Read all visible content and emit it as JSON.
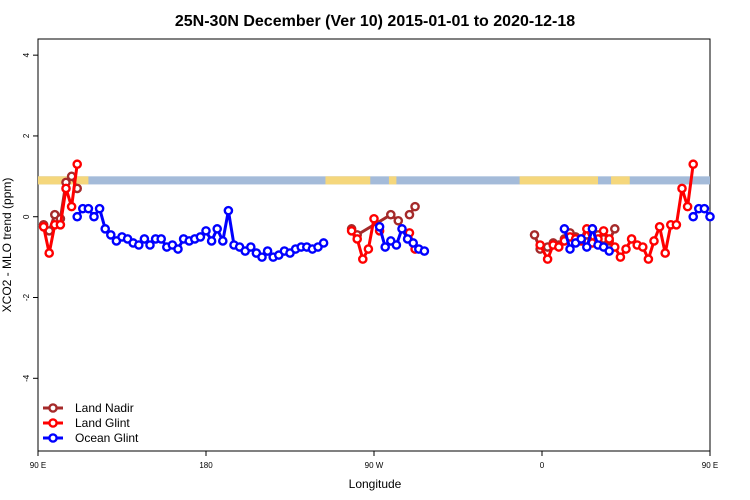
{
  "chart_data": {
    "type": "line",
    "title": "25N-30N December (Ver 10)   2015-01-01 to 2020-12-18",
    "xlabel": "Longitude",
    "ylabel": "XCO2 - MLO trend (ppm)",
    "xlim": [
      90,
      450
    ],
    "ylim": [
      -5.8,
      4.4
    ],
    "x_ticks": [
      {
        "value": 90,
        "label": "90 E"
      },
      {
        "value": 180,
        "label": "180"
      },
      {
        "value": 270,
        "label": "90 W"
      },
      {
        "value": 360,
        "label": "0"
      },
      {
        "value": 450,
        "label": "90 E"
      },
      {
        "value": 540,
        "label": "180"
      }
    ],
    "y_ticks": [
      {
        "value": 4,
        "label": "4"
      },
      {
        "value": 2,
        "label": "2"
      },
      {
        "value": 0,
        "label": "0"
      },
      {
        "value": -2,
        "label": "-2"
      },
      {
        "value": -4,
        "label": "-4"
      }
    ],
    "colors": {
      "land_nadir": "#a52a2a",
      "land_glint": "#ff0000",
      "ocean_glint": "#0000ff",
      "band_ocean": "#a4bbd9",
      "band_land": "#f5d77c"
    },
    "land_band": {
      "y_range": [
        0.8,
        1.0
      ],
      "land_lon_ranges": [
        [
          90,
          117
        ],
        [
          244,
          268
        ],
        [
          278,
          282
        ],
        [
          348,
          390
        ],
        [
          397,
          407
        ],
        [
          476,
          486
        ],
        [
          496,
          540
        ]
      ]
    },
    "legend": {
      "position": "bottom-left",
      "entries": [
        {
          "label": "Land Nadir",
          "color": "#a52a2a"
        },
        {
          "label": "Land Glint",
          "color": "#ff0000"
        },
        {
          "label": "Ocean Glint",
          "color": "#0000ff"
        }
      ]
    },
    "series": [
      {
        "name": "Land Nadir",
        "color": "#a52a2a",
        "segments": [
          [
            [
              93,
              -0.2
            ],
            [
              96,
              -0.35
            ],
            [
              99,
              0.05
            ],
            [
              102,
              -0.05
            ],
            [
              105,
              0.85
            ],
            [
              108,
              1.0
            ],
            [
              111,
              0.7
            ]
          ],
          [
            [
              258,
              -0.3
            ],
            [
              261,
              -0.45
            ],
            [
              279,
              0.05
            ],
            [
              283,
              -0.1
            ]
          ],
          [
            [
              289,
              0.05
            ],
            [
              292,
              0.25
            ]
          ],
          [
            [
              356,
              -0.45
            ],
            [
              359,
              -0.8
            ],
            [
              363,
              -0.75
            ],
            [
              366,
              -0.65
            ],
            [
              369,
              -0.7
            ],
            [
              372,
              -0.55
            ],
            [
              375,
              -0.4
            ],
            [
              378,
              -0.5
            ],
            [
              381,
              -0.55
            ],
            [
              384,
              -0.45
            ],
            [
              387,
              -0.3
            ],
            [
              390,
              -0.45
            ],
            [
              393,
              -0.55
            ],
            [
              396,
              -0.6
            ],
            [
              399,
              -0.3
            ]
          ]
        ]
      },
      {
        "name": "Land Glint",
        "color": "#ff0000",
        "segments": [
          [
            [
              93,
              -0.25
            ],
            [
              96,
              -0.9
            ],
            [
              99,
              -0.2
            ],
            [
              102,
              -0.2
            ],
            [
              105,
              0.7
            ],
            [
              108,
              0.25
            ],
            [
              111,
              1.3
            ]
          ],
          [
            [
              258,
              -0.35
            ],
            [
              261,
              -0.55
            ],
            [
              264,
              -1.05
            ],
            [
              267,
              -0.8
            ],
            [
              270,
              -0.05
            ],
            [
              273,
              -0.35
            ]
          ],
          [
            [
              289,
              -0.4
            ],
            [
              292,
              -0.8
            ]
          ],
          [
            [
              359,
              -0.7
            ],
            [
              363,
              -1.05
            ],
            [
              366,
              -0.7
            ],
            [
              369,
              -0.75
            ],
            [
              372,
              -0.6
            ],
            [
              375,
              -0.5
            ],
            [
              378,
              -0.55
            ],
            [
              381,
              -0.6
            ],
            [
              384,
              -0.3
            ],
            [
              387,
              -0.65
            ],
            [
              390,
              -0.55
            ],
            [
              393,
              -0.35
            ],
            [
              396,
              -0.55
            ],
            [
              399,
              -0.75
            ],
            [
              402,
              -1.0
            ],
            [
              405,
              -0.8
            ],
            [
              408,
              -0.55
            ],
            [
              411,
              -0.7
            ],
            [
              414,
              -0.75
            ],
            [
              417,
              -1.05
            ],
            [
              420,
              -0.6
            ],
            [
              423,
              -0.25
            ],
            [
              426,
              -0.9
            ],
            [
              429,
              -0.2
            ],
            [
              432,
              -0.2
            ],
            [
              435,
              0.7
            ],
            [
              438,
              0.25
            ],
            [
              441,
              1.3
            ]
          ]
        ]
      },
      {
        "name": "Ocean Glint",
        "color": "#0000ff",
        "segments": [
          [
            [
              111,
              0.0
            ],
            [
              114,
              0.2
            ],
            [
              117,
              0.2
            ],
            [
              120,
              0.0
            ],
            [
              123,
              0.2
            ],
            [
              126,
              -0.3
            ],
            [
              129,
              -0.45
            ],
            [
              132,
              -0.6
            ],
            [
              135,
              -0.5
            ],
            [
              138,
              -0.55
            ],
            [
              141,
              -0.65
            ],
            [
              144,
              -0.7
            ],
            [
              147,
              -0.55
            ],
            [
              150,
              -0.7
            ],
            [
              153,
              -0.55
            ],
            [
              156,
              -0.55
            ],
            [
              159,
              -0.75
            ],
            [
              162,
              -0.7
            ],
            [
              165,
              -0.8
            ],
            [
              168,
              -0.55
            ],
            [
              171,
              -0.6
            ],
            [
              174,
              -0.55
            ],
            [
              177,
              -0.5
            ],
            [
              180,
              -0.35
            ],
            [
              183,
              -0.6
            ],
            [
              186,
              -0.3
            ],
            [
              189,
              -0.6
            ],
            [
              192,
              0.15
            ],
            [
              195,
              -0.7
            ],
            [
              198,
              -0.75
            ],
            [
              201,
              -0.85
            ],
            [
              204,
              -0.75
            ],
            [
              207,
              -0.9
            ],
            [
              210,
              -1.0
            ],
            [
              213,
              -0.85
            ],
            [
              216,
              -1.0
            ],
            [
              219,
              -0.95
            ],
            [
              222,
              -0.85
            ],
            [
              225,
              -0.9
            ],
            [
              228,
              -0.8
            ],
            [
              231,
              -0.75
            ],
            [
              234,
              -0.75
            ],
            [
              237,
              -0.8
            ],
            [
              240,
              -0.75
            ],
            [
              243,
              -0.65
            ]
          ],
          [
            [
              273,
              -0.25
            ],
            [
              276,
              -0.75
            ],
            [
              279,
              -0.6
            ],
            [
              282,
              -0.7
            ],
            [
              285,
              -0.3
            ],
            [
              288,
              -0.55
            ],
            [
              291,
              -0.65
            ],
            [
              294,
              -0.8
            ],
            [
              297,
              -0.85
            ]
          ],
          [
            [
              372,
              -0.3
            ],
            [
              375,
              -0.8
            ],
            [
              378,
              -0.65
            ],
            [
              381,
              -0.55
            ],
            [
              384,
              -0.75
            ],
            [
              387,
              -0.3
            ],
            [
              390,
              -0.7
            ],
            [
              393,
              -0.75
            ],
            [
              396,
              -0.85
            ]
          ],
          [
            [
              441,
              0.0
            ],
            [
              444,
              0.2
            ],
            [
              447,
              0.2
            ],
            [
              450,
              0.0
            ]
          ]
        ]
      }
    ]
  }
}
